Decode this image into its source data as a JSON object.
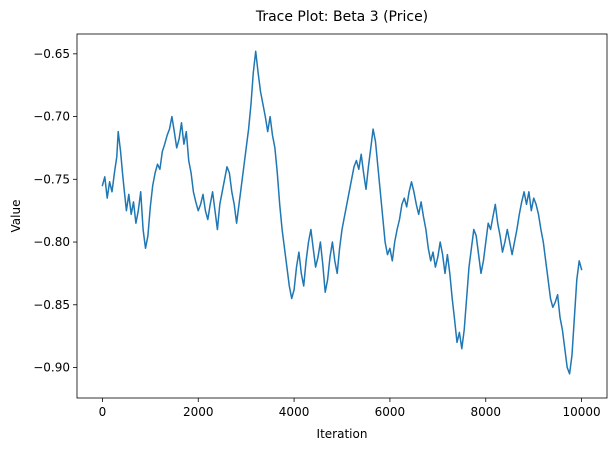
{
  "chart_data": {
    "type": "line",
    "title": "Trace Plot: Beta 3 (Price)",
    "xlabel": "Iteration",
    "ylabel": "Value",
    "xlim": [
      -530,
      10530
    ],
    "ylim": [
      -0.9243,
      -0.6342
    ],
    "xticks": [
      0,
      2000,
      4000,
      6000,
      8000,
      10000
    ],
    "xtick_labels": [
      "0",
      "2000",
      "4000",
      "6000",
      "8000",
      "10000"
    ],
    "yticks": [
      -0.65,
      -0.7,
      -0.75,
      -0.8,
      -0.85,
      -0.9
    ],
    "ytick_labels": [
      "−0.65",
      "−0.70",
      "−0.75",
      "−0.80",
      "−0.85",
      "−0.90"
    ],
    "grid": false,
    "legend": "none",
    "line_color": "#1f77b4",
    "series": [
      {
        "points": [
          [
            0,
            -0.755
          ],
          [
            50,
            -0.748
          ],
          [
            100,
            -0.765
          ],
          [
            150,
            -0.752
          ],
          [
            200,
            -0.76
          ],
          [
            250,
            -0.745
          ],
          [
            300,
            -0.732
          ],
          [
            330,
            -0.712
          ],
          [
            380,
            -0.728
          ],
          [
            420,
            -0.745
          ],
          [
            460,
            -0.76
          ],
          [
            500,
            -0.775
          ],
          [
            550,
            -0.762
          ],
          [
            600,
            -0.778
          ],
          [
            650,
            -0.768
          ],
          [
            700,
            -0.785
          ],
          [
            750,
            -0.775
          ],
          [
            800,
            -0.76
          ],
          [
            850,
            -0.79
          ],
          [
            900,
            -0.805
          ],
          [
            950,
            -0.795
          ],
          [
            1000,
            -0.772
          ],
          [
            1050,
            -0.755
          ],
          [
            1100,
            -0.745
          ],
          [
            1150,
            -0.738
          ],
          [
            1200,
            -0.742
          ],
          [
            1250,
            -0.728
          ],
          [
            1300,
            -0.722
          ],
          [
            1350,
            -0.715
          ],
          [
            1400,
            -0.71
          ],
          [
            1450,
            -0.7
          ],
          [
            1500,
            -0.712
          ],
          [
            1550,
            -0.725
          ],
          [
            1600,
            -0.718
          ],
          [
            1650,
            -0.705
          ],
          [
            1700,
            -0.722
          ],
          [
            1750,
            -0.712
          ],
          [
            1800,
            -0.735
          ],
          [
            1850,
            -0.745
          ],
          [
            1900,
            -0.76
          ],
          [
            1950,
            -0.768
          ],
          [
            2000,
            -0.775
          ],
          [
            2050,
            -0.77
          ],
          [
            2100,
            -0.762
          ],
          [
            2150,
            -0.775
          ],
          [
            2200,
            -0.782
          ],
          [
            2250,
            -0.77
          ],
          [
            2300,
            -0.76
          ],
          [
            2350,
            -0.775
          ],
          [
            2400,
            -0.79
          ],
          [
            2450,
            -0.77
          ],
          [
            2500,
            -0.76
          ],
          [
            2550,
            -0.75
          ],
          [
            2600,
            -0.74
          ],
          [
            2650,
            -0.745
          ],
          [
            2700,
            -0.76
          ],
          [
            2750,
            -0.77
          ],
          [
            2800,
            -0.785
          ],
          [
            2850,
            -0.77
          ],
          [
            2900,
            -0.755
          ],
          [
            2950,
            -0.74
          ],
          [
            3000,
            -0.725
          ],
          [
            3050,
            -0.71
          ],
          [
            3100,
            -0.69
          ],
          [
            3150,
            -0.665
          ],
          [
            3200,
            -0.648
          ],
          [
            3250,
            -0.665
          ],
          [
            3300,
            -0.68
          ],
          [
            3350,
            -0.69
          ],
          [
            3400,
            -0.7
          ],
          [
            3450,
            -0.712
          ],
          [
            3500,
            -0.7
          ],
          [
            3550,
            -0.715
          ],
          [
            3600,
            -0.725
          ],
          [
            3650,
            -0.745
          ],
          [
            3700,
            -0.77
          ],
          [
            3750,
            -0.79
          ],
          [
            3800,
            -0.805
          ],
          [
            3850,
            -0.82
          ],
          [
            3900,
            -0.835
          ],
          [
            3950,
            -0.845
          ],
          [
            4000,
            -0.838
          ],
          [
            4050,
            -0.82
          ],
          [
            4100,
            -0.808
          ],
          [
            4150,
            -0.825
          ],
          [
            4200,
            -0.835
          ],
          [
            4250,
            -0.815
          ],
          [
            4300,
            -0.8
          ],
          [
            4350,
            -0.79
          ],
          [
            4400,
            -0.805
          ],
          [
            4450,
            -0.82
          ],
          [
            4500,
            -0.812
          ],
          [
            4550,
            -0.8
          ],
          [
            4600,
            -0.818
          ],
          [
            4650,
            -0.84
          ],
          [
            4700,
            -0.83
          ],
          [
            4750,
            -0.812
          ],
          [
            4800,
            -0.8
          ],
          [
            4850,
            -0.815
          ],
          [
            4900,
            -0.825
          ],
          [
            4950,
            -0.805
          ],
          [
            5000,
            -0.79
          ],
          [
            5050,
            -0.78
          ],
          [
            5100,
            -0.77
          ],
          [
            5150,
            -0.76
          ],
          [
            5200,
            -0.75
          ],
          [
            5250,
            -0.74
          ],
          [
            5300,
            -0.735
          ],
          [
            5350,
            -0.742
          ],
          [
            5400,
            -0.73
          ],
          [
            5450,
            -0.745
          ],
          [
            5500,
            -0.758
          ],
          [
            5550,
            -0.74
          ],
          [
            5600,
            -0.725
          ],
          [
            5650,
            -0.71
          ],
          [
            5700,
            -0.72
          ],
          [
            5750,
            -0.74
          ],
          [
            5800,
            -0.76
          ],
          [
            5850,
            -0.78
          ],
          [
            5900,
            -0.8
          ],
          [
            5950,
            -0.81
          ],
          [
            6000,
            -0.805
          ],
          [
            6050,
            -0.815
          ],
          [
            6100,
            -0.8
          ],
          [
            6150,
            -0.79
          ],
          [
            6200,
            -0.782
          ],
          [
            6250,
            -0.77
          ],
          [
            6300,
            -0.765
          ],
          [
            6350,
            -0.772
          ],
          [
            6400,
            -0.76
          ],
          [
            6450,
            -0.752
          ],
          [
            6500,
            -0.76
          ],
          [
            6550,
            -0.77
          ],
          [
            6600,
            -0.778
          ],
          [
            6650,
            -0.768
          ],
          [
            6700,
            -0.78
          ],
          [
            6750,
            -0.79
          ],
          [
            6800,
            -0.805
          ],
          [
            6850,
            -0.815
          ],
          [
            6900,
            -0.808
          ],
          [
            6950,
            -0.82
          ],
          [
            7000,
            -0.812
          ],
          [
            7050,
            -0.8
          ],
          [
            7100,
            -0.81
          ],
          [
            7150,
            -0.825
          ],
          [
            7200,
            -0.81
          ],
          [
            7250,
            -0.825
          ],
          [
            7300,
            -0.845
          ],
          [
            7350,
            -0.862
          ],
          [
            7400,
            -0.88
          ],
          [
            7450,
            -0.872
          ],
          [
            7500,
            -0.885
          ],
          [
            7550,
            -0.87
          ],
          [
            7600,
            -0.845
          ],
          [
            7650,
            -0.82
          ],
          [
            7700,
            -0.805
          ],
          [
            7750,
            -0.79
          ],
          [
            7800,
            -0.795
          ],
          [
            7850,
            -0.81
          ],
          [
            7900,
            -0.825
          ],
          [
            7950,
            -0.815
          ],
          [
            8000,
            -0.8
          ],
          [
            8050,
            -0.785
          ],
          [
            8100,
            -0.79
          ],
          [
            8150,
            -0.78
          ],
          [
            8200,
            -0.77
          ],
          [
            8250,
            -0.785
          ],
          [
            8300,
            -0.795
          ],
          [
            8350,
            -0.808
          ],
          [
            8400,
            -0.8
          ],
          [
            8450,
            -0.79
          ],
          [
            8500,
            -0.8
          ],
          [
            8550,
            -0.81
          ],
          [
            8600,
            -0.8
          ],
          [
            8650,
            -0.79
          ],
          [
            8700,
            -0.778
          ],
          [
            8750,
            -0.768
          ],
          [
            8800,
            -0.76
          ],
          [
            8850,
            -0.77
          ],
          [
            8900,
            -0.76
          ],
          [
            8950,
            -0.775
          ],
          [
            9000,
            -0.765
          ],
          [
            9050,
            -0.77
          ],
          [
            9100,
            -0.778
          ],
          [
            9150,
            -0.79
          ],
          [
            9200,
            -0.8
          ],
          [
            9250,
            -0.815
          ],
          [
            9300,
            -0.83
          ],
          [
            9350,
            -0.845
          ],
          [
            9400,
            -0.852
          ],
          [
            9450,
            -0.848
          ],
          [
            9500,
            -0.842
          ],
          [
            9550,
            -0.86
          ],
          [
            9600,
            -0.87
          ],
          [
            9650,
            -0.885
          ],
          [
            9700,
            -0.9
          ],
          [
            9750,
            -0.905
          ],
          [
            9800,
            -0.89
          ],
          [
            9850,
            -0.86
          ],
          [
            9900,
            -0.83
          ],
          [
            9950,
            -0.815
          ],
          [
            10000,
            -0.822
          ]
        ]
      }
    ]
  }
}
